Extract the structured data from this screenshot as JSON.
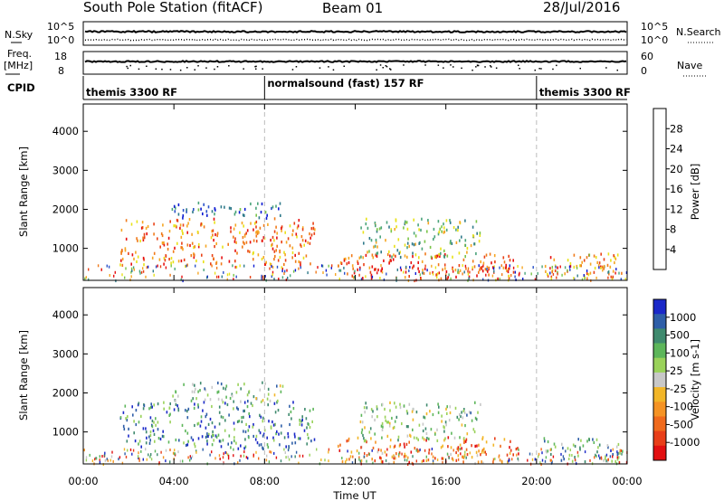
{
  "header": {
    "station": "South Pole Station (fitACF)",
    "beam": "Beam 01",
    "date": "28/Jul/2016"
  },
  "status": {
    "nsky_label": "N.Sky",
    "nsky_hi": "10^5",
    "nsky_lo": "10^0",
    "nsearch_label": "N.Search",
    "nsearch_hi": "10^5",
    "nsearch_lo": "10^0",
    "freq_label": "Freq.",
    "freq_unit": "[MHz]",
    "freq_hi": "18",
    "freq_lo": "8",
    "nave_label": "Nave",
    "nave_hi": "60",
    "nave_lo": "0",
    "cpid_label": "CPID",
    "cpid_segments": [
      {
        "label": "themis 3300 RF",
        "start_h": 0,
        "end_h": 8
      },
      {
        "label": "normalsound (fast) 157 RF",
        "start_h": 8,
        "end_h": 20
      },
      {
        "label": "themis 3300 RF",
        "start_h": 20,
        "end_h": 24
      }
    ]
  },
  "chart_data": [
    {
      "type": "heatmap",
      "title": "",
      "xlabel": "Time UT",
      "ylabel": "Slant Range [km]",
      "xlim": [
        0,
        24
      ],
      "ylim": [
        180,
        4700
      ],
      "x_ticks": [
        "00:00",
        "04:00",
        "08:00",
        "12:00",
        "16:00",
        "20:00",
        "00:00"
      ],
      "y_ticks": [
        1000,
        2000,
        3000,
        4000
      ],
      "colorbar": {
        "label": "Power [dB]",
        "ticks": [
          "4",
          "8",
          "12",
          "16",
          "20",
          "24",
          "28"
        ],
        "colors": [
          "#0d1bd2",
          "#2a52c9",
          "#2f7a8a",
          "#4aa47a",
          "#7ac449",
          "#e8e219",
          "#f6a623",
          "#f07a1a",
          "#e94216",
          "#e60f10"
        ]
      },
      "echo_regions": [
        {
          "t_start": 1.6,
          "t_end": 10.2,
          "r_low": 600,
          "r_high": 1800,
          "level": 0.75
        },
        {
          "t_start": 3.8,
          "t_end": 8.8,
          "r_low": 1800,
          "r_high": 2200,
          "level": 0.2
        },
        {
          "t_start": 11.2,
          "t_end": 19.2,
          "r_low": 250,
          "r_high": 900,
          "level": 0.85
        },
        {
          "t_start": 12.2,
          "t_end": 17.5,
          "r_low": 800,
          "r_high": 1800,
          "level": 0.45
        },
        {
          "t_start": 20.3,
          "t_end": 23.8,
          "r_low": 250,
          "r_high": 900,
          "level": 0.7
        }
      ]
    },
    {
      "type": "heatmap",
      "title": "",
      "xlabel": "Time UT",
      "ylabel": "Slant Range [km]",
      "xlim": [
        0,
        24
      ],
      "ylim": [
        180,
        4700
      ],
      "x_ticks": [
        "00:00",
        "04:00",
        "08:00",
        "12:00",
        "16:00",
        "20:00",
        "00:00"
      ],
      "y_ticks": [
        1000,
        2000,
        3000,
        4000
      ],
      "colorbar": {
        "label": "Velocity [m s-1]",
        "ticks": [
          "1000",
          "500",
          "100",
          "25",
          "-25",
          "-100",
          "-500",
          "-1000"
        ],
        "colors": [
          "#1a28c8",
          "#2e5ea8",
          "#3f8a6e",
          "#5db65a",
          "#9ad25a",
          "#c8c8c8",
          "#f2b628",
          "#f59324",
          "#f06a1c",
          "#e83e18",
          "#e20f10"
        ]
      },
      "echo_regions": [
        {
          "t_start": 1.6,
          "t_end": 10.2,
          "r_low": 600,
          "r_high": 1800,
          "level": 0.2
        },
        {
          "t_start": 3.8,
          "t_end": 8.8,
          "r_low": 1800,
          "r_high": 2300,
          "level": 0.35
        },
        {
          "t_start": 11.2,
          "t_end": 19.2,
          "r_low": 250,
          "r_high": 900,
          "level": 0.75
        },
        {
          "t_start": 12.2,
          "t_end": 17.5,
          "r_low": 800,
          "r_high": 1800,
          "level": 0.4
        },
        {
          "t_start": 20.3,
          "t_end": 23.8,
          "r_low": 250,
          "r_high": 900,
          "level": 0.3
        }
      ]
    }
  ]
}
